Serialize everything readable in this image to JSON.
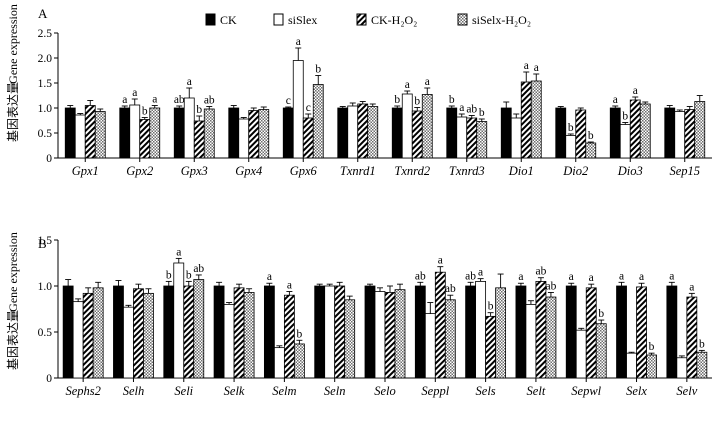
{
  "legend": {
    "entries": [
      {
        "label": "CK",
        "pattern": "solid-black"
      },
      {
        "label": "siSlex",
        "pattern": "white"
      },
      {
        "label": "CK-H₂O₂",
        "pattern": "diagonal-hatch"
      },
      {
        "label": "siSelx-H₂O₂",
        "pattern": "crosshatch"
      }
    ]
  },
  "colors": {
    "ck": "#000000",
    "sislex": "#ffffff",
    "hatch": "#000000",
    "cross": "#8a8a8a"
  },
  "chart_data": [
    {
      "type": "bar",
      "panel_label": "A",
      "ylabel_cn": "基因表达量",
      "ylabel_en": "Gene expression",
      "ylim": [
        0,
        2.5
      ],
      "yticks": [
        "0",
        "0.5",
        "1.0",
        "1.5",
        "2.0",
        "2.5"
      ],
      "categories": [
        "Gpx1",
        "Gpx2",
        "Gpx3",
        "Gpx4",
        "Gpx6",
        "Txnrd1",
        "Txnrd2",
        "Txnrd3",
        "Dio1",
        "Dio2",
        "Dio3",
        "Sep15"
      ],
      "series": [
        {
          "name": "CK",
          "values": [
            1.0,
            1.0,
            1.0,
            1.0,
            1.0,
            1.0,
            1.0,
            1.0,
            1.0,
            1.0,
            1.0,
            1.0
          ],
          "errors": [
            0.05,
            0.04,
            0.04,
            0.05,
            0.02,
            0.03,
            0.04,
            0.04,
            0.12,
            0.03,
            0.04,
            0.05
          ],
          "labels": [
            "",
            "a",
            "ab",
            "",
            "c",
            "",
            "b",
            "b",
            "",
            "",
            "a",
            ""
          ]
        },
        {
          "name": "siSlex",
          "values": [
            0.86,
            1.06,
            1.2,
            0.78,
            1.95,
            1.04,
            1.28,
            0.82,
            0.8,
            0.45,
            0.67,
            0.93
          ],
          "errors": [
            0.03,
            0.12,
            0.2,
            0.03,
            0.25,
            0.06,
            0.06,
            0.06,
            0.08,
            0.03,
            0.04,
            0.03
          ],
          "labels": [
            "",
            "a",
            "a",
            "",
            "a",
            "",
            "a",
            "a",
            "",
            "b",
            "b",
            ""
          ],
          "sig_label_on_bar": [
            false,
            false,
            false,
            false,
            false,
            false,
            false,
            false,
            false,
            false,
            false,
            false
          ]
        },
        {
          "name": "CK-H₂O₂",
          "values": [
            1.05,
            0.77,
            0.74,
            0.95,
            0.8,
            1.08,
            0.94,
            0.8,
            1.52,
            0.96,
            1.16,
            0.97
          ],
          "errors": [
            0.1,
            0.04,
            0.1,
            0.05,
            0.08,
            0.05,
            0.07,
            0.05,
            0.2,
            0.04,
            0.06,
            0.06
          ],
          "labels": [
            "",
            "b",
            "b",
            "",
            "c",
            "",
            "b",
            "ab",
            "a",
            "",
            "a",
            ""
          ]
        },
        {
          "name": "siSelx-H₂O₂",
          "values": [
            0.93,
            1.0,
            0.98,
            0.97,
            1.47,
            1.03,
            1.27,
            0.73,
            1.54,
            0.3,
            1.08,
            1.13
          ],
          "errors": [
            0.05,
            0.05,
            0.05,
            0.05,
            0.18,
            0.05,
            0.13,
            0.05,
            0.14,
            0.02,
            0.04,
            0.12
          ],
          "labels": [
            "",
            "a",
            "ab",
            "",
            "b",
            "",
            "a",
            "b",
            "a",
            "b",
            "",
            ""
          ]
        }
      ]
    },
    {
      "type": "bar",
      "panel_label": "B",
      "ylabel_cn": "基因表达量",
      "ylabel_en": "Gene expression",
      "ylim": [
        0,
        1.5
      ],
      "yticks": [
        "0",
        "0.5",
        "1.0",
        "1.5"
      ],
      "categories": [
        "Sephs2",
        "Selh",
        "Seli",
        "Selk",
        "Selm",
        "Seln",
        "Selo",
        "Seppl",
        "Sels",
        "Selt",
        "Sepwl",
        "Selx",
        "Selv"
      ],
      "series": [
        {
          "name": "CK",
          "values": [
            1.0,
            1.0,
            1.0,
            1.0,
            1.0,
            1.0,
            1.0,
            1.0,
            1.0,
            1.0,
            1.0,
            1.0,
            1.0
          ],
          "errors": [
            0.07,
            0.06,
            0.05,
            0.04,
            0.03,
            0.02,
            0.02,
            0.04,
            0.04,
            0.03,
            0.03,
            0.04,
            0.04
          ],
          "labels": [
            "",
            "",
            "b",
            "",
            "a",
            "",
            "",
            "ab",
            "ab",
            "a",
            "a",
            "a",
            "a"
          ]
        },
        {
          "name": "siSlex",
          "values": [
            0.83,
            0.77,
            1.25,
            0.8,
            0.33,
            1.0,
            0.94,
            0.7,
            1.05,
            0.8,
            0.52,
            0.27,
            0.22
          ],
          "errors": [
            0.03,
            0.02,
            0.05,
            0.02,
            0.02,
            0.02,
            0.04,
            0.12,
            0.03,
            0.04,
            0.02,
            0.01,
            0.02
          ],
          "labels": [
            "",
            "",
            "a",
            "",
            "",
            "",
            "",
            "",
            "a",
            "",
            "",
            "",
            ""
          ]
        },
        {
          "name": "CK-H₂O₂",
          "values": [
            0.92,
            0.97,
            1.0,
            0.98,
            0.9,
            1.0,
            0.93,
            1.15,
            0.67,
            1.05,
            0.98,
            0.99,
            0.88
          ],
          "errors": [
            0.06,
            0.05,
            0.05,
            0.04,
            0.04,
            0.04,
            0.07,
            0.06,
            0.04,
            0.04,
            0.04,
            0.04,
            0.04
          ],
          "labels": [
            "",
            "",
            "b",
            "",
            "a",
            "",
            "",
            "a",
            "b",
            "ab",
            "a",
            "a",
            "a"
          ]
        },
        {
          "name": "siSelx-H₂O₂",
          "values": [
            0.98,
            0.92,
            1.07,
            0.93,
            0.37,
            0.85,
            0.96,
            0.85,
            0.98,
            0.88,
            0.59,
            0.25,
            0.28
          ],
          "errors": [
            0.06,
            0.05,
            0.05,
            0.04,
            0.04,
            0.04,
            0.06,
            0.05,
            0.15,
            0.05,
            0.04,
            0.02,
            0.02
          ],
          "labels": [
            "",
            "",
            "ab",
            "",
            "b",
            "",
            "",
            "ab",
            "",
            "ab",
            "b",
            "b",
            "b"
          ]
        }
      ]
    }
  ]
}
